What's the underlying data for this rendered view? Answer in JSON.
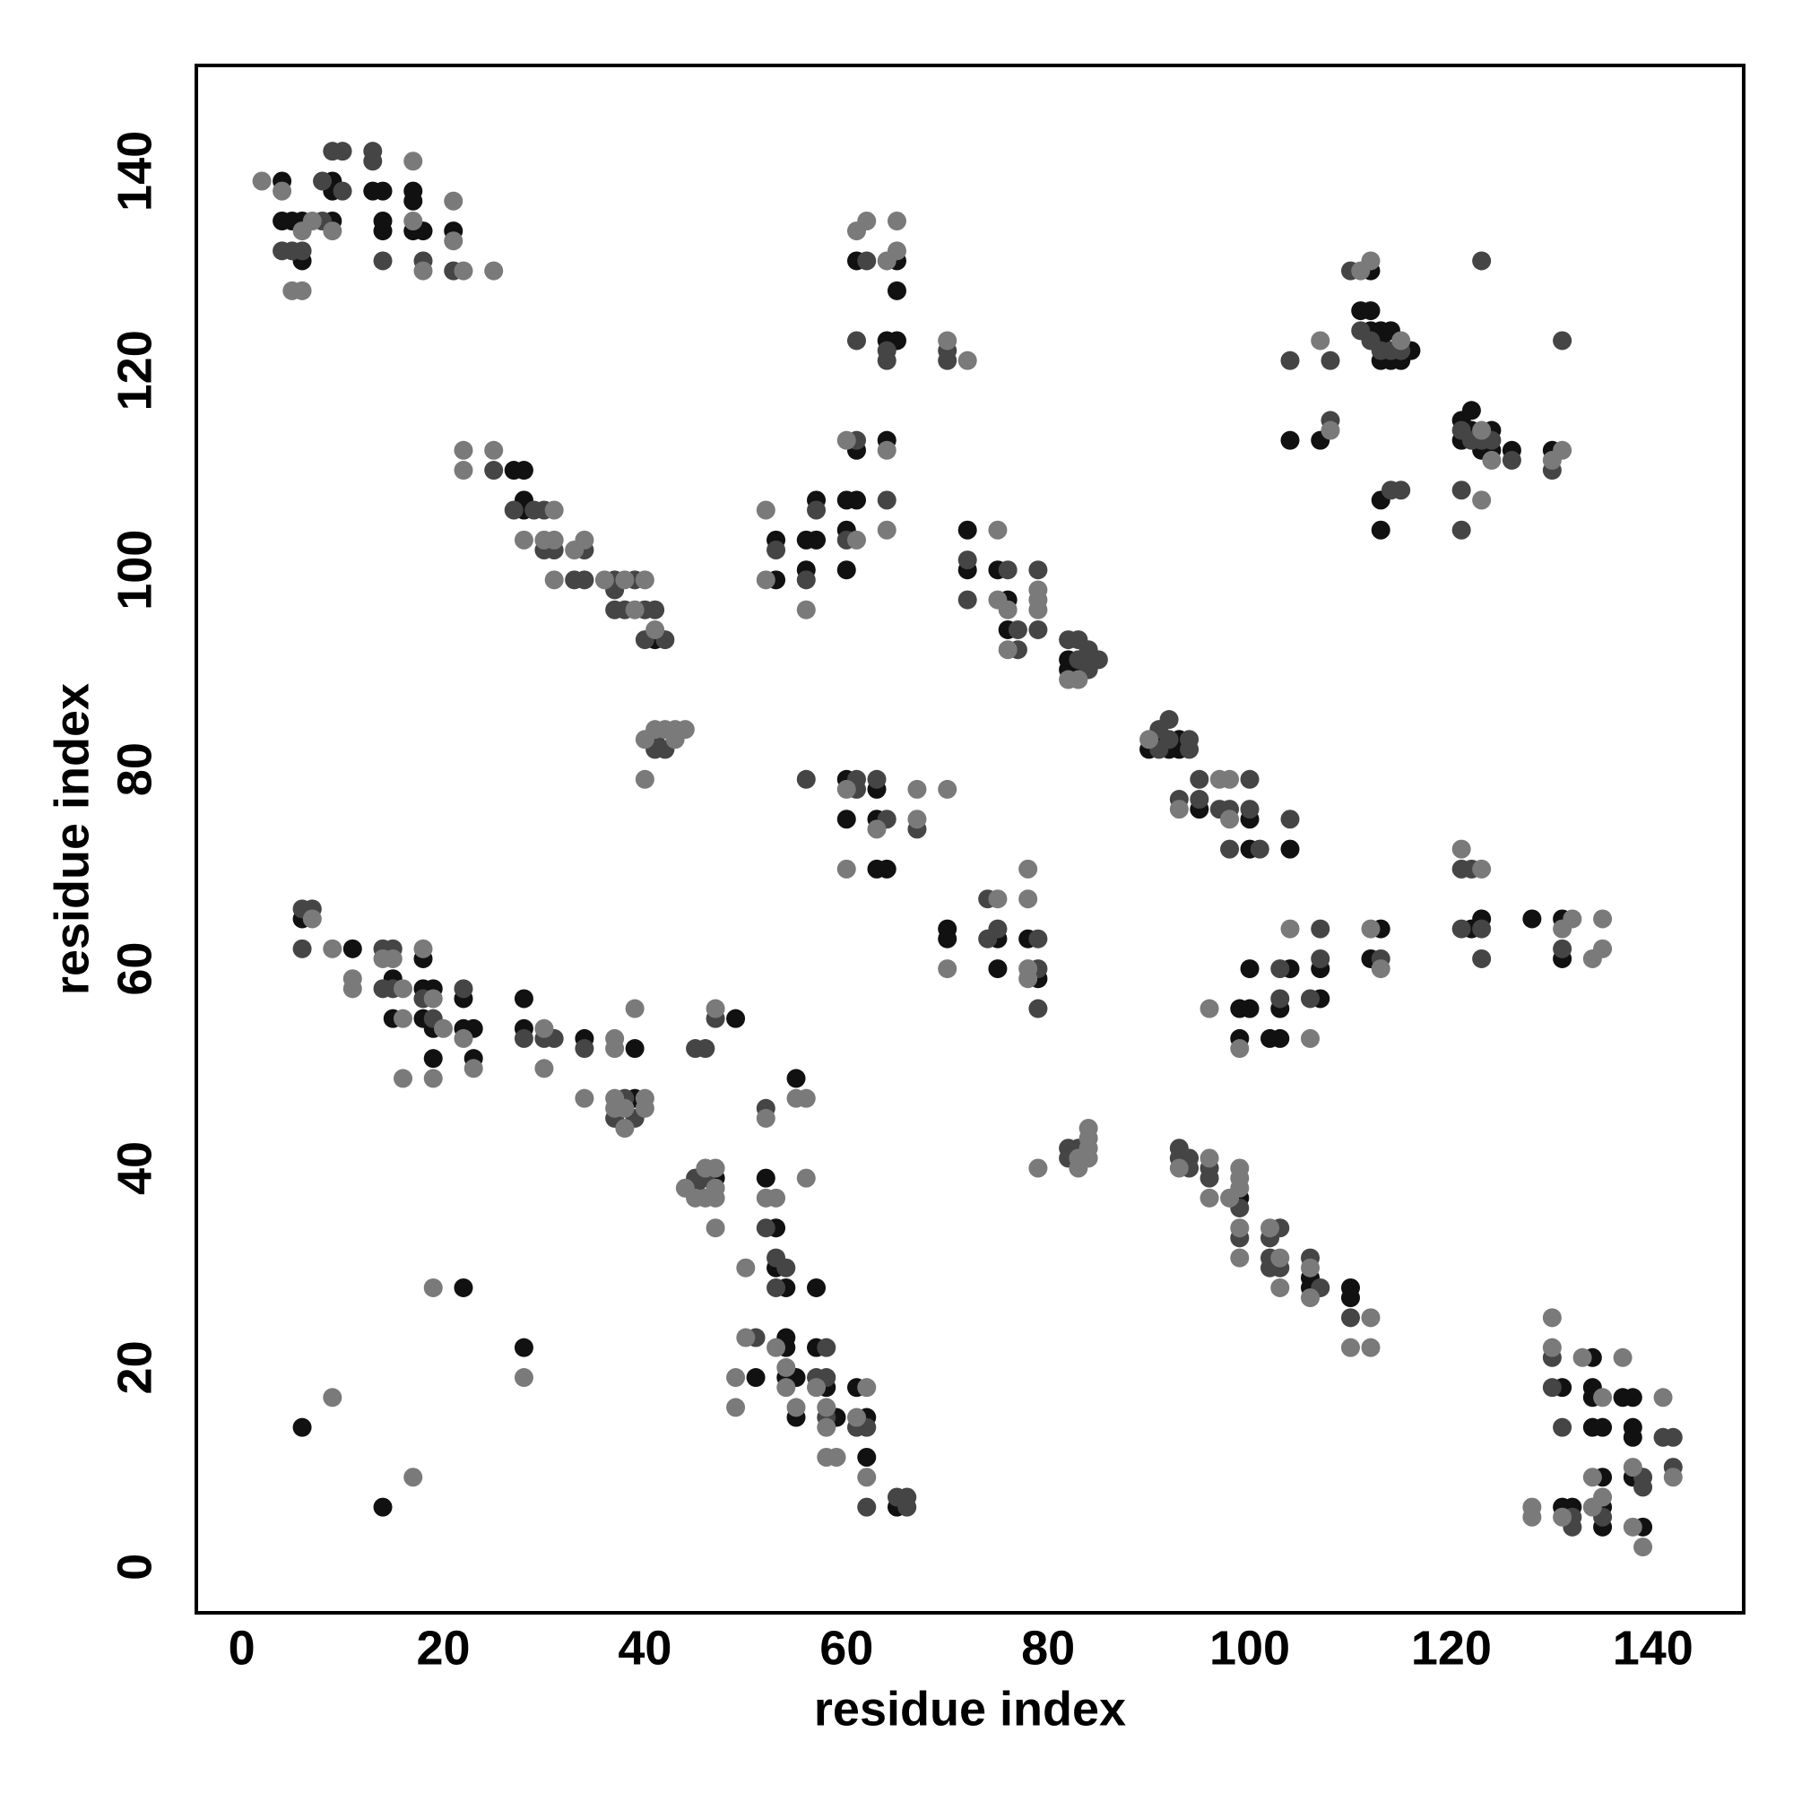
{
  "chart_data": {
    "type": "scatter",
    "xlabel": "residue index",
    "ylabel": "residue index",
    "xlim": [
      -4.5,
      149
    ],
    "ylim": [
      -4.6,
      150.6
    ],
    "xticks": [
      0,
      20,
      40,
      60,
      80,
      100,
      120,
      140
    ],
    "yticks": [
      0,
      20,
      40,
      60,
      80,
      100,
      120,
      140
    ],
    "grid": false,
    "series": [
      {
        "color": "#111111",
        "x": [
          4,
          4,
          5,
          6,
          6,
          9,
          9,
          9,
          13,
          14,
          14,
          14,
          17,
          17,
          17,
          18,
          21,
          27,
          28,
          28,
          28,
          41,
          6,
          11,
          15,
          15,
          18,
          18,
          19,
          18,
          19,
          19,
          22,
          22,
          23,
          23,
          28,
          28,
          34,
          39,
          39,
          49,
          47,
          52,
          53,
          53,
          54,
          55,
          57,
          54,
          54,
          54,
          55,
          51,
          55,
          57,
          58,
          59,
          61,
          62,
          62,
          65,
          6,
          14,
          22,
          28,
          61,
          65,
          65,
          64,
          65,
          61,
          64,
          53,
          53,
          56,
          57,
          57,
          56,
          60,
          61,
          60,
          60,
          60,
          60,
          63,
          63,
          63,
          64,
          72,
          72,
          75,
          76,
          76,
          82,
          82,
          83,
          91,
          90,
          93,
          93,
          92,
          95,
          100,
          100,
          104,
          70,
          70,
          75,
          75,
          78,
          79,
          99,
          106,
          106,
          110,
          110,
          99,
          100,
          99,
          100,
          102,
          103,
          103,
          104,
          107,
          107,
          112,
          113,
          122,
          123,
          128,
          131,
          131,
          112,
          111,
          112,
          112,
          113,
          114,
          113,
          113,
          114,
          115,
          116,
          104,
          107,
          113,
          113,
          121,
          122,
          122,
          121,
          123,
          124,
          124,
          126,
          130,
          131,
          131,
          132,
          134,
          134,
          134,
          134,
          135,
          135,
          135,
          135,
          137,
          138,
          138,
          138,
          138,
          139
        ],
        "values": [
          139,
          135,
          135,
          135,
          131,
          139,
          138,
          135,
          138,
          138,
          135,
          134,
          138,
          137,
          134,
          134,
          134,
          110,
          110,
          107,
          106,
          93,
          65,
          62,
          59,
          55,
          61,
          58,
          58,
          55,
          54,
          51,
          57,
          54,
          54,
          51,
          57,
          54,
          53,
          47,
          52,
          55,
          39,
          39,
          34,
          30,
          28,
          49,
          28,
          23,
          22,
          19,
          19,
          19,
          15,
          22,
          18,
          15,
          18,
          15,
          11,
          6,
          14,
          6,
          28,
          22,
          131,
          131,
          128,
          123,
          123,
          112,
          113,
          103,
          99,
          103,
          103,
          107,
          100,
          107,
          107,
          104,
          100,
          79,
          75,
          78,
          75,
          70,
          70,
          104,
          100,
          100,
          97,
          94,
          91,
          90,
          90,
          83,
          82,
          83,
          82,
          82,
          76,
          75,
          72,
          72,
          64,
          63,
          63,
          60,
          63,
          59,
          37,
          29,
          28,
          28,
          27,
          56,
          56,
          53,
          60,
          53,
          53,
          56,
          60,
          57,
          60,
          61,
          64,
          64,
          65,
          65,
          65,
          61,
          130,
          126,
          126,
          124,
          124,
          124,
          123,
          121,
          121,
          121,
          122,
          113,
          113,
          107,
          104,
          115,
          116,
          114,
          113,
          112,
          114,
          112,
          112,
          112,
          18,
          6,
          6,
          21,
          18,
          17,
          14,
          14,
          9,
          6,
          4,
          17,
          17,
          14,
          13,
          9,
          4
        ]
      },
      {
        "color": "#454545",
        "x": [
          4,
          5,
          6,
          8,
          8,
          9,
          10,
          10,
          13,
          13,
          14,
          18,
          21,
          25,
          27,
          29,
          30,
          30,
          31,
          33,
          34,
          34,
          37,
          37,
          37,
          38,
          39,
          40,
          40,
          41,
          42,
          41,
          41,
          42,
          6,
          7,
          6,
          14,
          15,
          14,
          15,
          18,
          19,
          22,
          28,
          30,
          31,
          34,
          37,
          38,
          39,
          45,
          46,
          47,
          45,
          45,
          46,
          52,
          52,
          53,
          54,
          53,
          51,
          58,
          57,
          58,
          58,
          61,
          62,
          62,
          65,
          66,
          66,
          62,
          61,
          64,
          64,
          61,
          53,
          57,
          56,
          60,
          64,
          56,
          61,
          61,
          63,
          64,
          67,
          70,
          70,
          72,
          72,
          76,
          77,
          77,
          79,
          79,
          82,
          83,
          83,
          84,
          84,
          85,
          84,
          91,
          91,
          92,
          92,
          94,
          94,
          93,
          95,
          95,
          97,
          98,
          98,
          100,
          100,
          101,
          104,
          74,
          74,
          75,
          79,
          79,
          79,
          82,
          83,
          82,
          93,
          93,
          94,
          94,
          96,
          96,
          99,
          99,
          103,
          102,
          102,
          102,
          103,
          106,
          107,
          110,
          103,
          103,
          106,
          107,
          107,
          113,
          121,
          122,
          121,
          123,
          123,
          131,
          110,
          111,
          112,
          113,
          114,
          115,
          104,
          108,
          108,
          114,
          115,
          121,
          122,
          123,
          124,
          126,
          121,
          121,
          123,
          130,
          131,
          130,
          130,
          131,
          132,
          132,
          135,
          139,
          139,
          141,
          142,
          142
        ],
        "values": [
          132,
          132,
          132,
          135,
          139,
          142,
          142,
          138,
          142,
          141,
          131,
          131,
          130,
          110,
          106,
          106,
          106,
          102,
          102,
          99,
          102,
          99,
          99,
          98,
          96,
          96,
          99,
          96,
          93,
          96,
          93,
          83,
          82,
          82,
          66,
          66,
          62,
          62,
          62,
          58,
          58,
          57,
          55,
          58,
          53,
          53,
          53,
          52,
          45,
          47,
          45,
          52,
          52,
          55,
          39,
          38,
          39,
          46,
          34,
          31,
          30,
          28,
          23,
          22,
          19,
          19,
          15,
          14,
          14,
          6,
          7,
          7,
          6,
          131,
          123,
          122,
          121,
          113,
          102,
          106,
          99,
          103,
          107,
          79,
          79,
          78,
          79,
          75,
          74,
          122,
          121,
          101,
          97,
          100,
          94,
          92,
          100,
          94,
          93,
          93,
          91,
          91,
          90,
          91,
          92,
          84,
          82,
          85,
          83,
          83,
          82,
          77,
          79,
          77,
          76,
          76,
          72,
          79,
          76,
          72,
          75,
          67,
          63,
          64,
          63,
          60,
          56,
          42,
          42,
          41,
          42,
          41,
          41,
          40,
          40,
          39,
          36,
          33,
          34,
          33,
          31,
          30,
          30,
          31,
          28,
          25,
          57,
          60,
          57,
          61,
          64,
          61,
          70,
          70,
          64,
          64,
          61,
          62,
          130,
          124,
          123,
          122,
          122,
          122,
          121,
          121,
          115,
          108,
          108,
          114,
          113,
          113,
          113,
          111,
          108,
          104,
          131,
          110,
          123,
          21,
          18,
          14,
          5,
          4,
          5,
          9,
          8,
          13,
          13,
          10
        ]
      },
      {
        "color": "#7a7a7a",
        "x": [
          2,
          4,
          6,
          5,
          6,
          7,
          9,
          17,
          17,
          18,
          21,
          21,
          22,
          25,
          22,
          22,
          25,
          28,
          30,
          31,
          31,
          31,
          33,
          34,
          36,
          38,
          39,
          40,
          41,
          40,
          41,
          42,
          43,
          43,
          44,
          40,
          7,
          9,
          11,
          11,
          14,
          15,
          16,
          16,
          16,
          18,
          19,
          20,
          19,
          22,
          23,
          30,
          30,
          34,
          37,
          37,
          37,
          37,
          38,
          38,
          39,
          40,
          40,
          47,
          44,
          45,
          46,
          46,
          47,
          47,
          47,
          47,
          52,
          52,
          53,
          50,
          55,
          56,
          56,
          50,
          53,
          54,
          54,
          49,
          49,
          55,
          57,
          58,
          58,
          58,
          59,
          62,
          61,
          62,
          9,
          17,
          19,
          28,
          61,
          62,
          64,
          65,
          65,
          60,
          64,
          52,
          52,
          56,
          61,
          64,
          60,
          60,
          63,
          67,
          67,
          70,
          70,
          72,
          75,
          75,
          76,
          76,
          79,
          79,
          79,
          82,
          83,
          90,
          93,
          97,
          98,
          98,
          70,
          75,
          78,
          78,
          78,
          78,
          79,
          83,
          83,
          84,
          84,
          84,
          84,
          93,
          96,
          96,
          98,
          99,
          99,
          99,
          99,
          99,
          102,
          103,
          103,
          106,
          106,
          112,
          110,
          112,
          96,
          99,
          104,
          106,
          112,
          113,
          121,
          123,
          132,
          131,
          134,
          135,
          135,
          111,
          112,
          115,
          107,
          108,
          123,
          124,
          123,
          131,
          130,
          130,
          130,
          128,
          128,
          131,
          133,
          135,
          134,
          134,
          135,
          137,
          138,
          138,
          139,
          141,
          142
        ],
        "values": [
          139,
          138,
          134,
          128,
          128,
          135,
          134,
          141,
          135,
          130,
          137,
          133,
          130,
          130,
          112,
          110,
          112,
          103,
          103,
          106,
          103,
          99,
          102,
          103,
          99,
          99,
          96,
          99,
          94,
          83,
          84,
          84,
          84,
          83,
          84,
          79,
          65,
          62,
          59,
          58,
          61,
          61,
          58,
          55,
          49,
          62,
          57,
          54,
          49,
          53,
          50,
          54,
          50,
          47,
          53,
          52,
          47,
          46,
          46,
          44,
          56,
          47,
          46,
          56,
          38,
          37,
          40,
          37,
          40,
          38,
          37,
          34,
          45,
          37,
          37,
          30,
          47,
          47,
          39,
          23,
          22,
          20,
          18,
          19,
          16,
          16,
          18,
          16,
          14,
          11,
          11,
          18,
          15,
          9,
          17,
          9,
          28,
          19,
          134,
          135,
          131,
          132,
          135,
          113,
          112,
          106,
          99,
          96,
          103,
          104,
          78,
          70,
          74,
          78,
          75,
          78,
          123,
          121,
          104,
          97,
          96,
          92,
          98,
          97,
          96,
          89,
          89,
          83,
          76,
          79,
          79,
          75,
          60,
          67,
          70,
          67,
          60,
          59,
          40,
          41,
          40,
          43,
          44,
          42,
          41,
          40,
          41,
          37,
          37,
          40,
          39,
          38,
          34,
          31,
          34,
          31,
          28,
          30,
          27,
          25,
          22,
          22,
          56,
          52,
          64,
          53,
          64,
          60,
          72,
          70,
          65,
          64,
          61,
          62,
          65,
          130,
          131,
          123,
          123,
          114,
          114,
          111,
          107,
          112,
          111,
          25,
          22,
          6,
          5,
          5,
          21,
          17,
          9,
          6,
          7,
          21,
          10,
          4,
          2,
          17,
          9
        ]
      }
    ]
  }
}
